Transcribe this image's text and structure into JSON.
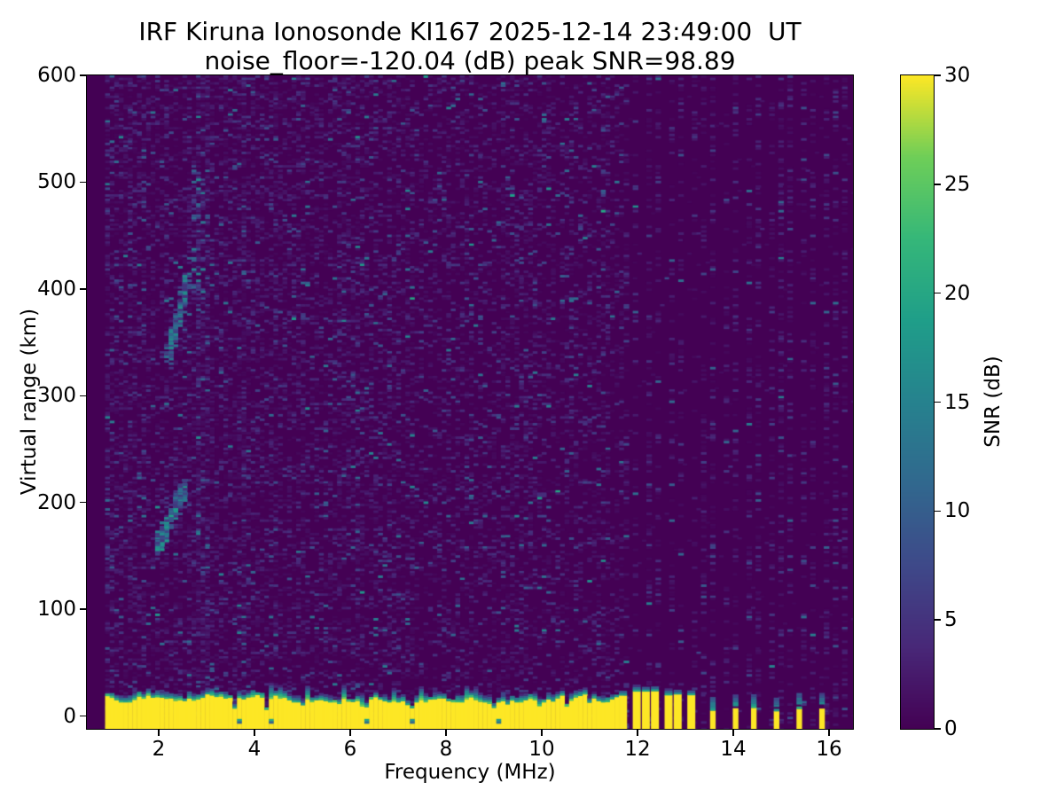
{
  "figure": {
    "title": "IRF Kiruna Ionosonde KI167 2025-12-14 23:49:00  UT",
    "subtitle": "noise_floor=-120.04 (dB) peak SNR=98.89",
    "station": "IRF Kiruna Ionosonde",
    "sounding_id": "KI167",
    "timestamp_ut": "2025-12-14 23:49:00",
    "noise_floor_db": -120.04,
    "peak_snr_db": 98.89
  },
  "chart_data": {
    "type": "heatmap",
    "title": "IRF Kiruna Ionosonde KI167 2025-12-14 23:49:00  UT",
    "subtitle": "noise_floor=-120.04 (dB) peak SNR=98.89",
    "xlabel": "Frequency (MHz)",
    "ylabel": "Virtual range (km)",
    "xlim": [
      0.5,
      16.5
    ],
    "ylim": [
      -12,
      600
    ],
    "xticks": [
      2,
      4,
      6,
      8,
      10,
      12,
      14,
      16
    ],
    "yticks": [
      0,
      100,
      200,
      300,
      400,
      500,
      600
    ],
    "grid": false,
    "colorbar": {
      "label": "SNR (dB)",
      "min": 0,
      "max": 30,
      "ticks": [
        0,
        5,
        10,
        15,
        20,
        25,
        30
      ],
      "colormap": "viridis",
      "position": "right"
    },
    "colormap_anchors": [
      [
        0.0,
        "#440154"
      ],
      [
        0.125,
        "#482878"
      ],
      [
        0.25,
        "#3e4989"
      ],
      [
        0.375,
        "#31688e"
      ],
      [
        0.5,
        "#26828e"
      ],
      [
        0.625,
        "#1f9e89"
      ],
      [
        0.75,
        "#35b779"
      ],
      [
        0.875,
        "#6ece58"
      ],
      [
        1.0,
        "#fde725"
      ]
    ],
    "background_color": "#440154",
    "noise": {
      "seed": 20251214,
      "cell_mhz": 0.095,
      "cell_km": 2.1,
      "left_region": {
        "f_start": 0.95,
        "f_end": 11.72,
        "density": 0.4,
        "snr_scale": 1.9,
        "teal_fraction": 0.025,
        "hot_columns": [
          2.9,
          3.05,
          3.8
        ]
      },
      "column_region": {
        "f_start": 11.76,
        "f_step": 0.23,
        "count": 21,
        "density": 0.3,
        "snr_scale": 1.9,
        "width_mhz": 0.11,
        "between_density": 0.04
      }
    },
    "ground_band": {
      "f_start": 0.95,
      "f_end": 11.72,
      "top_km_min": 13,
      "top_km_max": 30,
      "fringe_max_cells": 6,
      "tall_spike_prob": 0.07,
      "notches": [
        {
          "f": 3.6,
          "width": 0.16,
          "depth": 7
        },
        {
          "f": 4.28,
          "width": 0.14,
          "depth": 6
        },
        {
          "f": 5.05,
          "width": 0.12,
          "depth": 10
        },
        {
          "f": 5.82,
          "width": 0.12,
          "depth": 11
        },
        {
          "f": 6.32,
          "width": 0.15,
          "depth": 6
        },
        {
          "f": 7.28,
          "width": 0.15,
          "depth": 6
        },
        {
          "f": 8.3,
          "width": 0.12,
          "depth": 12
        },
        {
          "f": 9.0,
          "width": 0.16,
          "depth": 7
        },
        {
          "f": 9.3,
          "width": 0.12,
          "depth": 11
        },
        {
          "f": 10.0,
          "width": 0.14,
          "depth": 9
        },
        {
          "f": 10.55,
          "width": 0.14,
          "depth": 9
        },
        {
          "f": 11.0,
          "width": 0.12,
          "depth": 12
        }
      ],
      "subzero_speck_freqs": [
        3.65,
        4.3,
        6.35,
        7.3,
        9.05
      ]
    },
    "rf_stripes": {
      "dense": {
        "freqs": [
          11.76,
          11.99,
          12.22,
          12.45,
          12.68,
          12.91,
          13.14
        ],
        "yellow_top_km_min": 19,
        "yellow_top_km_max": 24,
        "width_mhz": 0.16
      },
      "sparse": {
        "freqs": [
          13.6,
          14.06,
          14.52,
          14.98,
          15.44,
          15.9
        ],
        "yellow_top_km_min": 4,
        "yellow_top_km_max": 8,
        "cap_top_km_min": 13,
        "cap_top_km_max": 22,
        "width_mhz": 0.11
      }
    },
    "echo_features": [
      {
        "shape": "diagonal",
        "f_range": [
          1.95,
          2.55
        ],
        "range_km": [
          158,
          215
        ],
        "thickness_km": 16,
        "density": 0.5,
        "snr": [
          5,
          19
        ]
      },
      {
        "shape": "diagonal",
        "f_range": [
          2.2,
          2.6
        ],
        "range_km": [
          338,
          408
        ],
        "thickness_km": 18,
        "density": 0.4,
        "snr": [
          4,
          17
        ]
      },
      {
        "shape": "cloud",
        "f_range": [
          2.74,
          3.02
        ],
        "range_km": [
          392,
          512
        ],
        "density": 0.26,
        "snr": [
          3,
          16
        ]
      }
    ]
  }
}
